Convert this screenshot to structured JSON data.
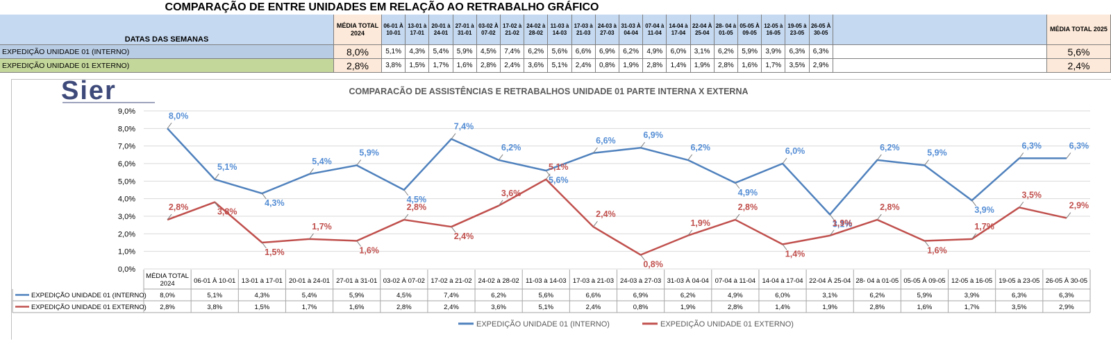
{
  "page": {
    "title": "COMPARAÇÃO DE ENTRE UNIDADES EM RELAÇÃO AO RETRABALHO GRÁFICO"
  },
  "table": {
    "header_label": "DATAS DAS SEMANAS",
    "avg_2024_label": "MÉDIA TOTAL 2024",
    "avg_2025_label": "MÉDIA TOTAL 2025",
    "weeks": [
      "06-01 À 10-01",
      "13-01 à 17-01",
      "20-01 à 24-01",
      "27-01 à 31-01",
      "03-02 À 07-02",
      "17-02 à 21-02",
      "24-02 à 28-02",
      "11-03 à 14-03",
      "17-03 à 21-03",
      "24-03 à 27-03",
      "31-03 À 04-04",
      "07-04 à 11-04",
      "14-04 à 17-04",
      "22-04 À 25-04",
      "28- 04 à 01-05",
      "05-05 À 09-05",
      "12-05 à 16-05",
      "19-05 à 23-05",
      "26-05 À 30-05"
    ],
    "rows": [
      {
        "label": "EXPEDIÇÃO UNIDADE 01 (INTERNO)",
        "avg_2024": "8,0%",
        "values": [
          "5,1%",
          "4,3%",
          "5,4%",
          "5,9%",
          "4,5%",
          "7,4%",
          "6,2%",
          "5,6%",
          "6,6%",
          "6,9%",
          "6,2%",
          "4,9%",
          "6,0%",
          "3,1%",
          "6,2%",
          "5,9%",
          "3,9%",
          "6,3%",
          "6,3%"
        ],
        "avg_2025": "5,6%",
        "color": "#b8cce4"
      },
      {
        "label": "EXPEDIÇÃO UNIDADE 01 EXTERNO)",
        "avg_2024": "2,8%",
        "values": [
          "3,8%",
          "1,5%",
          "1,7%",
          "1,6%",
          "2,8%",
          "2,4%",
          "3,6%",
          "5,1%",
          "2,4%",
          "0,8%",
          "1,9%",
          "2,8%",
          "1,4%",
          "1,9%",
          "2,8%",
          "1,6%",
          "1,7%",
          "3,5%",
          "2,9%"
        ],
        "avg_2025": "2,4%",
        "color": "#c4d79b"
      }
    ]
  },
  "logo": {
    "text": "Sier",
    "color": "#3e4a7a"
  },
  "chart_data": {
    "type": "line",
    "title": "COMPARACÃO DE ASSISTÊNCIAS E RETRABALHOS UNIDADE 01 PARTE INTERNA X EXTERNA",
    "categories": [
      "MÉDIA TOTAL 2024",
      "06-01 À 10-01",
      "13-01 à 17-01",
      "20-01 à 24-01",
      "27-01 à 31-01",
      "03-02 À 07-02",
      "17-02 à 21-02",
      "24-02 à 28-02",
      "11-03 à 14-03",
      "17-03 à 21-03",
      "24-03 à 27-03",
      "31-03 À 04-04",
      "07-04 à 11-04",
      "14-04 à 17-04",
      "22-04 À 25-04",
      "28- 04 à 01-05",
      "05-05 À 09-05",
      "12-05 à 16-05",
      "19-05 à 23-05",
      "26-05 À 30-05"
    ],
    "ylim": [
      0,
      9
    ],
    "ytick_step": 1,
    "ytick_labels": [
      "0,0%",
      "1,0%",
      "2,0%",
      "3,0%",
      "4,0%",
      "5,0%",
      "6,0%",
      "7,0%",
      "8,0%",
      "9,0%"
    ],
    "grid": true,
    "legend_position": "bottom",
    "series": [
      {
        "name": "EXPEDIÇÃO UNIDADE 01 (INTERNO)",
        "color": "#4f81bd",
        "label_color": "#558ed5",
        "values": [
          8.0,
          5.1,
          4.3,
          5.4,
          5.9,
          4.5,
          7.4,
          6.2,
          5.6,
          6.6,
          6.9,
          6.2,
          4.9,
          6.0,
          3.1,
          6.2,
          5.9,
          3.9,
          6.3,
          6.3
        ],
        "labels": [
          "8,0%",
          "5,1%",
          "4,3%",
          "5,4%",
          "5,9%",
          "4,5%",
          "7,4%",
          "6,2%",
          "5,6%",
          "6,6%",
          "6,9%",
          "6,2%",
          "4,9%",
          "6,0%",
          "3,1%",
          "6,2%",
          "5,9%",
          "3,9%",
          "6,3%",
          "6,3%"
        ]
      },
      {
        "name": "EXPEDIÇÃO UNIDADE 01 EXTERNO)",
        "color": "#c0504d",
        "label_color": "#c0504d",
        "values": [
          2.8,
          3.8,
          1.5,
          1.7,
          1.6,
          2.8,
          2.4,
          3.6,
          5.1,
          2.4,
          0.8,
          1.9,
          2.8,
          1.4,
          1.9,
          2.8,
          1.6,
          1.7,
          3.5,
          2.9
        ],
        "labels": [
          "2,8%",
          "3,8%",
          "1,5%",
          "1,7%",
          "1,6%",
          "2,8%",
          "2,4%",
          "3,6%",
          "5,1%",
          "2,4%",
          "0,8%",
          "1,9%",
          "2,8%",
          "1,4%",
          "1,9%",
          "2,8%",
          "1,6%",
          "1,7%",
          "3,5%",
          "2,9%"
        ]
      }
    ]
  }
}
